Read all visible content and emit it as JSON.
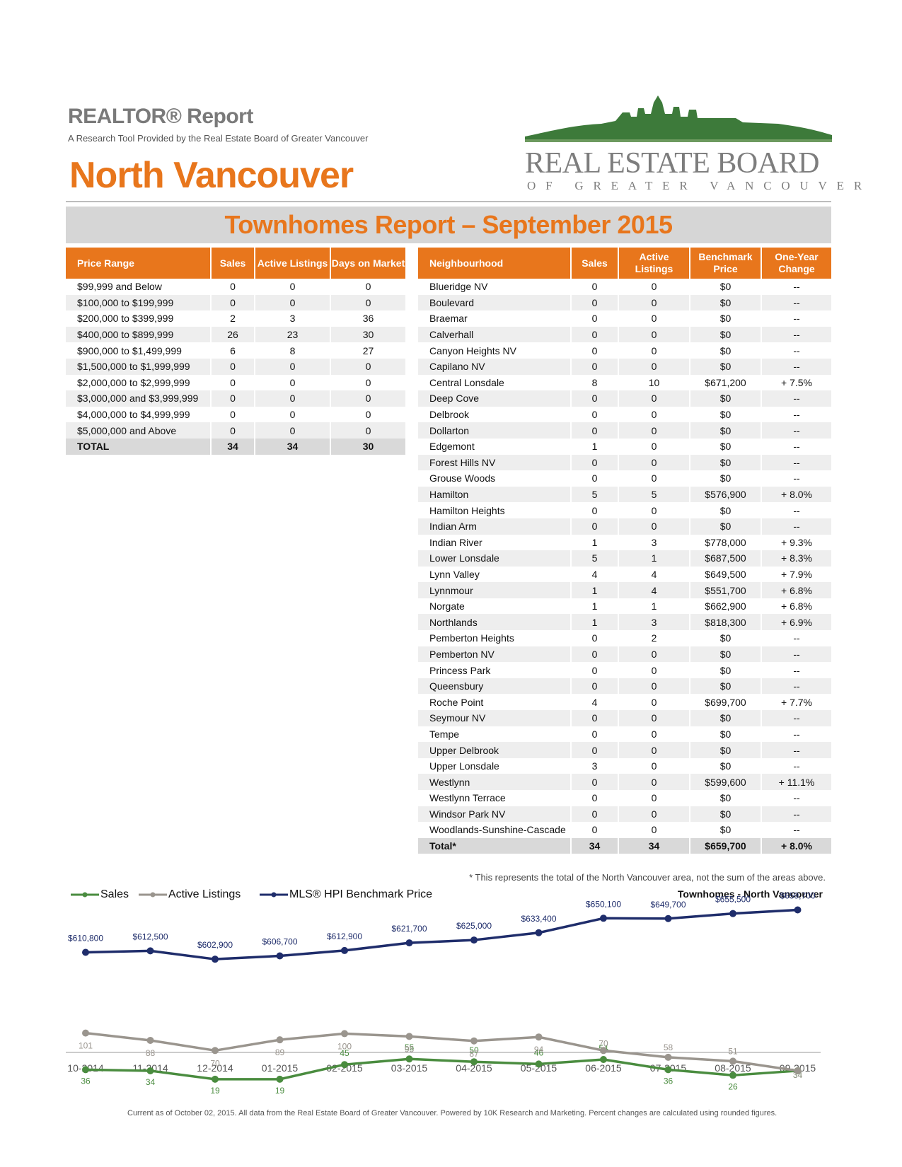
{
  "header": {
    "brand_title": "REALTOR® Report",
    "brand_subtitle": "A Research Tool Provided by the Real Estate Board of Greater Vancouver",
    "area_title": "North Vancouver",
    "logo_line1": "REAL ESTATE BOARD",
    "logo_line2": "OF GREATER VANCOUVER"
  },
  "report_title": "Townhomes Report – September 2015",
  "price_table": {
    "headers": [
      "Price Range",
      "Sales",
      "Active Listings",
      "Days on Market"
    ],
    "rows": [
      [
        "$99,999 and Below",
        "0",
        "0",
        "0"
      ],
      [
        "$100,000 to $199,999",
        "0",
        "0",
        "0"
      ],
      [
        "$200,000 to $399,999",
        "2",
        "3",
        "36"
      ],
      [
        "$400,000 to $899,999",
        "26",
        "23",
        "30"
      ],
      [
        "$900,000 to $1,499,999",
        "6",
        "8",
        "27"
      ],
      [
        "$1,500,000 to $1,999,999",
        "0",
        "0",
        "0"
      ],
      [
        "$2,000,000 to $2,999,999",
        "0",
        "0",
        "0"
      ],
      [
        "$3,000,000 and $3,999,999",
        "0",
        "0",
        "0"
      ],
      [
        "$4,000,000 to $4,999,999",
        "0",
        "0",
        "0"
      ],
      [
        "$5,000,000 and Above",
        "0",
        "0",
        "0"
      ]
    ],
    "total": [
      "TOTAL",
      "34",
      "34",
      "30"
    ]
  },
  "neighbourhood_table": {
    "headers": [
      "Neighbourhood",
      "Sales",
      "Active Listings",
      "Benchmark Price",
      "One-Year Change"
    ],
    "rows": [
      [
        "Blueridge NV",
        "0",
        "0",
        "$0",
        "--"
      ],
      [
        "Boulevard",
        "0",
        "0",
        "$0",
        "--"
      ],
      [
        "Braemar",
        "0",
        "0",
        "$0",
        "--"
      ],
      [
        "Calverhall",
        "0",
        "0",
        "$0",
        "--"
      ],
      [
        "Canyon Heights NV",
        "0",
        "0",
        "$0",
        "--"
      ],
      [
        "Capilano NV",
        "0",
        "0",
        "$0",
        "--"
      ],
      [
        "Central Lonsdale",
        "8",
        "10",
        "$671,200",
        "+ 7.5%"
      ],
      [
        "Deep Cove",
        "0",
        "0",
        "$0",
        "--"
      ],
      [
        "Delbrook",
        "0",
        "0",
        "$0",
        "--"
      ],
      [
        "Dollarton",
        "0",
        "0",
        "$0",
        "--"
      ],
      [
        "Edgemont",
        "1",
        "0",
        "$0",
        "--"
      ],
      [
        "Forest Hills NV",
        "0",
        "0",
        "$0",
        "--"
      ],
      [
        "Grouse Woods",
        "0",
        "0",
        "$0",
        "--"
      ],
      [
        "Hamilton",
        "5",
        "5",
        "$576,900",
        "+ 8.0%"
      ],
      [
        "Hamilton Heights",
        "0",
        "0",
        "$0",
        "--"
      ],
      [
        "Indian Arm",
        "0",
        "0",
        "$0",
        "--"
      ],
      [
        "Indian River",
        "1",
        "3",
        "$778,000",
        "+ 9.3%"
      ],
      [
        "Lower Lonsdale",
        "5",
        "1",
        "$687,500",
        "+ 8.3%"
      ],
      [
        "Lynn Valley",
        "4",
        "4",
        "$649,500",
        "+ 7.9%"
      ],
      [
        "Lynnmour",
        "1",
        "4",
        "$551,700",
        "+ 6.8%"
      ],
      [
        "Norgate",
        "1",
        "1",
        "$662,900",
        "+ 6.8%"
      ],
      [
        "Northlands",
        "1",
        "3",
        "$818,300",
        "+ 6.9%"
      ],
      [
        "Pemberton Heights",
        "0",
        "2",
        "$0",
        "--"
      ],
      [
        "Pemberton NV",
        "0",
        "0",
        "$0",
        "--"
      ],
      [
        "Princess Park",
        "0",
        "0",
        "$0",
        "--"
      ],
      [
        "Queensbury",
        "0",
        "0",
        "$0",
        "--"
      ],
      [
        "Roche Point",
        "4",
        "0",
        "$699,700",
        "+ 7.7%"
      ],
      [
        "Seymour NV",
        "0",
        "0",
        "$0",
        "--"
      ],
      [
        "Tempe",
        "0",
        "0",
        "$0",
        "--"
      ],
      [
        "Upper Delbrook",
        "0",
        "0",
        "$0",
        "--"
      ],
      [
        "Upper Lonsdale",
        "3",
        "0",
        "$0",
        "--"
      ],
      [
        "Westlynn",
        "0",
        "0",
        "$599,600",
        "+ 11.1%"
      ],
      [
        "Westlynn Terrace",
        "0",
        "0",
        "$0",
        "--"
      ],
      [
        "Windsor Park NV",
        "0",
        "0",
        "$0",
        "--"
      ],
      [
        "Woodlands-Sunshine-Cascade",
        "0",
        "0",
        "$0",
        "--"
      ]
    ],
    "total": [
      "Total*",
      "34",
      "34",
      "$659,700",
      "+ 8.0%"
    ]
  },
  "footnote": "* This represents the total of the North Vancouver area, not the sum of the areas above.",
  "chart_data": {
    "type": "line",
    "title": "Townhomes - North Vancouver",
    "categories": [
      "10-2014",
      "11-2014",
      "12-2014",
      "01-2015",
      "02-2015",
      "03-2015",
      "04-2015",
      "05-2015",
      "06-2015",
      "07-2015",
      "08-2015",
      "09-2015"
    ],
    "series": [
      {
        "name": "Sales",
        "color": "#4a8c3f",
        "values": [
          36,
          34,
          19,
          19,
          45,
          55,
          50,
          46,
          54,
          36,
          26,
          34
        ],
        "labels": [
          "36",
          "34",
          "19",
          "19",
          "45",
          "55",
          "50",
          "46",
          "54",
          "36",
          "26",
          "34"
        ]
      },
      {
        "name": "Active Listings",
        "color": "#9a958e",
        "values": [
          101,
          88,
          70,
          89,
          100,
          95,
          87,
          94,
          70,
          58,
          51,
          34
        ],
        "labels": [
          "101",
          "88",
          "70",
          "89",
          "100",
          "95",
          "87",
          "94",
          "70",
          "58",
          "51",
          "34"
        ]
      },
      {
        "name": "MLS® HPI Benchmark Price",
        "color": "#1f2d6b",
        "values": [
          610800,
          612500,
          602900,
          606700,
          612900,
          621700,
          625000,
          633400,
          650100,
          649700,
          655500,
          659700
        ],
        "labels": [
          "$610,800",
          "$612,500",
          "$602,900",
          "$606,700",
          "$612,900",
          "$621,700",
          "$625,000",
          "$633,400",
          "$650,100",
          "$649,700",
          "$655,500",
          "$659,700"
        ]
      }
    ],
    "legend_position": "top-left"
  },
  "disclaimer": "Current as of October 02, 2015. All data from the Real Estate Board of Greater Vancouver.  Powered by 10K Research and Marketing. Percent changes are calculated using rounded figures."
}
